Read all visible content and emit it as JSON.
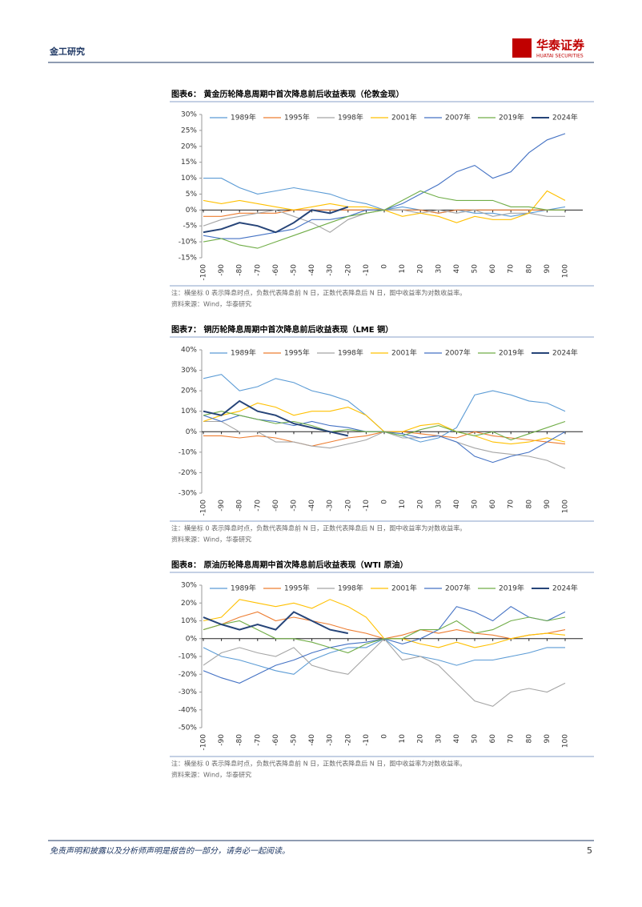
{
  "header": {
    "section": "金工研究",
    "logo_cn": "华泰证券",
    "logo_en": "HUATAI SECURITIES"
  },
  "chart_data": [
    {
      "type": "line",
      "title": "图表6：  黄金历轮降息周期中首次降息前后收益表现（伦敦金现）",
      "x": [
        -100,
        -90,
        -80,
        -70,
        -60,
        -50,
        -40,
        -30,
        -20,
        -10,
        0,
        10,
        20,
        30,
        40,
        50,
        60,
        70,
        80,
        90,
        100
      ],
      "xlim": [
        -100,
        100
      ],
      "xticks": [
        -100,
        -90,
        -80,
        -70,
        -60,
        -50,
        -40,
        -30,
        -20,
        -10,
        0,
        10,
        20,
        30,
        40,
        50,
        60,
        70,
        80,
        90,
        100
      ],
      "ylim": [
        -15,
        30
      ],
      "yticks": [
        {
          "value": -15,
          "label": "-15%"
        },
        {
          "value": -10,
          "label": "-10%"
        },
        {
          "value": -5,
          "label": "-5%"
        },
        {
          "value": 0,
          "label": "0%"
        },
        {
          "value": 5,
          "label": "5%"
        },
        {
          "value": 10,
          "label": "10%"
        },
        {
          "value": 15,
          "label": "15%"
        },
        {
          "value": 20,
          "label": "20%"
        },
        {
          "value": 25,
          "label": "25%"
        },
        {
          "value": 30,
          "label": "30%"
        }
      ],
      "grid": false,
      "legend": "top",
      "series": [
        {
          "name": "1989年",
          "color": "#5b9bd5",
          "values": [
            10,
            10,
            7,
            5,
            6,
            7,
            6,
            5,
            3,
            2,
            0,
            1,
            0,
            -1,
            0,
            -1,
            -1,
            -2,
            -1,
            0,
            1
          ]
        },
        {
          "name": "1995年",
          "color": "#ed7d31",
          "values": [
            -2,
            -2,
            -1,
            -1,
            -1,
            0,
            0,
            0,
            0,
            0,
            0,
            0,
            0,
            -1,
            0,
            0,
            0,
            0,
            0,
            0,
            0
          ]
        },
        {
          "name": "1998年",
          "color": "#a5a5a5",
          "values": [
            -5,
            -3,
            -2,
            -1,
            0,
            -2,
            -4,
            -7,
            -3,
            -1,
            0,
            0,
            -1,
            0,
            -1,
            0,
            -2,
            -1,
            -1,
            -2,
            -2
          ]
        },
        {
          "name": "2001年",
          "color": "#ffc000",
          "values": [
            3,
            2,
            3,
            2,
            1,
            0,
            1,
            2,
            1,
            1,
            0,
            -2,
            -1,
            -2,
            -4,
            -2,
            -3,
            -3,
            -1,
            6,
            3
          ]
        },
        {
          "name": "2007年",
          "color": "#4472c4",
          "values": [
            -8,
            -9,
            -9,
            -8,
            -7,
            -6,
            -3,
            -3,
            -2,
            0,
            0,
            2,
            5,
            8,
            12,
            14,
            10,
            12,
            18,
            22,
            24
          ]
        },
        {
          "name": "2019年",
          "color": "#70ad47",
          "values": [
            -10,
            -9,
            -11,
            -12,
            -10,
            -8,
            -6,
            -4,
            -2,
            -1,
            0,
            3,
            6,
            4,
            3,
            3,
            3,
            1,
            1,
            0,
            0
          ]
        },
        {
          "name": "2024年",
          "color": "#264478",
          "values": [
            -7,
            -6,
            -4,
            -5,
            -7,
            -4,
            0,
            -1,
            1,
            null,
            null,
            null,
            null,
            null,
            null,
            null,
            null,
            null,
            null,
            null,
            null
          ]
        }
      ]
    },
    {
      "type": "line",
      "title": "图表7：  铜历轮降息周期中首次降息前后收益表现（LME 铜）",
      "x": [
        -100,
        -90,
        -80,
        -70,
        -60,
        -50,
        -40,
        -30,
        -20,
        -10,
        0,
        10,
        20,
        30,
        40,
        50,
        60,
        70,
        80,
        90,
        100
      ],
      "xlim": [
        -100,
        100
      ],
      "xticks": [
        -100,
        -90,
        -80,
        -70,
        -60,
        -50,
        -40,
        -30,
        -20,
        -10,
        0,
        10,
        20,
        30,
        40,
        50,
        60,
        70,
        80,
        90,
        100
      ],
      "ylim": [
        -30,
        40
      ],
      "yticks": [
        {
          "value": -30,
          "label": "-30%"
        },
        {
          "value": -20,
          "label": "-20%"
        },
        {
          "value": -10,
          "label": "-10%"
        },
        {
          "value": 0,
          "label": "0%"
        },
        {
          "value": 10,
          "label": "10%"
        },
        {
          "value": 20,
          "label": "20%"
        },
        {
          "value": 30,
          "label": "30%"
        },
        {
          "value": 40,
          "label": "40%"
        }
      ],
      "grid": false,
      "legend": "top",
      "series": [
        {
          "name": "1989年",
          "color": "#5b9bd5",
          "values": [
            26,
            28,
            20,
            22,
            26,
            24,
            20,
            18,
            15,
            8,
            0,
            -2,
            -5,
            -3,
            2,
            18,
            20,
            18,
            15,
            14,
            10
          ]
        },
        {
          "name": "1995年",
          "color": "#ed7d31",
          "values": [
            -2,
            -2,
            -3,
            -2,
            -3,
            -5,
            -7,
            -5,
            -3,
            -2,
            0,
            0,
            -1,
            -2,
            -3,
            0,
            -2,
            -3,
            -4,
            -5,
            -6
          ]
        },
        {
          "name": "1998年",
          "color": "#a5a5a5",
          "values": [
            5,
            5,
            0,
            0,
            -5,
            -5,
            -7,
            -8,
            -6,
            -4,
            0,
            -3,
            -3,
            -2,
            -5,
            -8,
            -10,
            -11,
            -12,
            -14,
            -18
          ]
        },
        {
          "name": "2001年",
          "color": "#ffc000",
          "values": [
            5,
            8,
            10,
            14,
            12,
            8,
            10,
            10,
            12,
            8,
            0,
            0,
            3,
            4,
            0,
            -2,
            -5,
            -6,
            -5,
            -3,
            -5
          ]
        },
        {
          "name": "2007年",
          "color": "#4472c4",
          "values": [
            8,
            5,
            8,
            6,
            5,
            3,
            5,
            3,
            2,
            0,
            0,
            -1,
            -3,
            -2,
            -5,
            -12,
            -15,
            -12,
            -10,
            -5,
            0
          ]
        },
        {
          "name": "2019年",
          "color": "#70ad47",
          "values": [
            8,
            10,
            8,
            6,
            4,
            5,
            3,
            0,
            1,
            0,
            0,
            -2,
            1,
            3,
            0,
            -2,
            0,
            -4,
            -1,
            2,
            5
          ]
        },
        {
          "name": "2024年",
          "color": "#264478",
          "values": [
            10,
            8,
            15,
            10,
            8,
            4,
            2,
            0,
            -2,
            null,
            null,
            null,
            null,
            null,
            null,
            null,
            null,
            null,
            null,
            null,
            null
          ]
        }
      ]
    },
    {
      "type": "line",
      "title": "图表8：  原油历轮降息周期中首次降息前后收益表现（WTI 原油）",
      "x": [
        -100,
        -90,
        -80,
        -70,
        -60,
        -50,
        -40,
        -30,
        -20,
        -10,
        0,
        10,
        20,
        30,
        40,
        50,
        60,
        70,
        80,
        90,
        100
      ],
      "xlim": [
        -100,
        100
      ],
      "xticks": [
        -100,
        -90,
        -80,
        -70,
        -60,
        -50,
        -40,
        -30,
        -20,
        -10,
        0,
        10,
        20,
        30,
        40,
        50,
        60,
        70,
        80,
        90,
        100
      ],
      "ylim": [
        -50,
        30
      ],
      "yticks": [
        {
          "value": -50,
          "label": "-50%"
        },
        {
          "value": -40,
          "label": "-40%"
        },
        {
          "value": -30,
          "label": "-30%"
        },
        {
          "value": -20,
          "label": "-20%"
        },
        {
          "value": -10,
          "label": "-10%"
        },
        {
          "value": 0,
          "label": "0%"
        },
        {
          "value": 10,
          "label": "10%"
        },
        {
          "value": 20,
          "label": "20%"
        },
        {
          "value": 30,
          "label": "30%"
        }
      ],
      "grid": false,
      "legend": "top",
      "series": [
        {
          "name": "1989年",
          "color": "#5b9bd5",
          "values": [
            -5,
            -10,
            -12,
            -15,
            -18,
            -20,
            -12,
            -8,
            -5,
            -5,
            0,
            -8,
            -10,
            -12,
            -15,
            -12,
            -12,
            -10,
            -8,
            -5,
            -5
          ]
        },
        {
          "name": "1995年",
          "color": "#ed7d31",
          "values": [
            5,
            8,
            12,
            15,
            10,
            12,
            10,
            8,
            5,
            3,
            0,
            2,
            5,
            3,
            5,
            3,
            2,
            0,
            2,
            3,
            5
          ]
        },
        {
          "name": "1998年",
          "color": "#a5a5a5",
          "values": [
            -15,
            -8,
            -5,
            -8,
            -10,
            -5,
            -15,
            -18,
            -20,
            -10,
            0,
            -12,
            -10,
            -15,
            -25,
            -35,
            -38,
            -30,
            -28,
            -30,
            -25
          ]
        },
        {
          "name": "2001年",
          "color": "#ffc000",
          "values": [
            10,
            12,
            22,
            20,
            18,
            20,
            17,
            22,
            18,
            12,
            0,
            0,
            -3,
            -5,
            -2,
            -5,
            -3,
            0,
            2,
            3,
            2
          ]
        },
        {
          "name": "2007年",
          "color": "#4472c4",
          "values": [
            -18,
            -22,
            -25,
            -20,
            -15,
            -12,
            -8,
            -5,
            -3,
            -2,
            0,
            -3,
            0,
            5,
            18,
            15,
            10,
            18,
            12,
            10,
            15
          ]
        },
        {
          "name": "2019年",
          "color": "#70ad47",
          "values": [
            5,
            8,
            10,
            5,
            0,
            0,
            -2,
            -5,
            -8,
            -3,
            0,
            0,
            5,
            5,
            10,
            3,
            5,
            10,
            12,
            10,
            12
          ]
        },
        {
          "name": "2024年",
          "color": "#264478",
          "values": [
            12,
            8,
            5,
            8,
            5,
            15,
            10,
            5,
            3,
            null,
            null,
            null,
            null,
            null,
            null,
            null,
            null,
            null,
            null,
            null,
            null
          ]
        }
      ]
    }
  ],
  "figures": [
    {
      "note": "注：横坐标 0 表示降息时点，负数代表降息前 N 日，正数代表降息后 N 日，图中收益率为对数收益率。",
      "source": "资料来源：Wind，华泰研究"
    },
    {
      "note": "注：横坐标 0 表示降息时点，负数代表降息前 N 日，正数代表降息后 N 日，图中收益率为对数收益率。",
      "source": "资料来源：Wind，华泰研究"
    },
    {
      "note": "注：横坐标 0 表示降息时点，负数代表降息前 N 日，正数代表降息后 N 日，图中收益率为对数收益率。",
      "source": "资料来源：Wind，华泰研究"
    }
  ],
  "footer": {
    "disclaimer": "免责声明和披露以及分析师声明是报告的一部分，请务必一起阅读。",
    "page": "5"
  }
}
